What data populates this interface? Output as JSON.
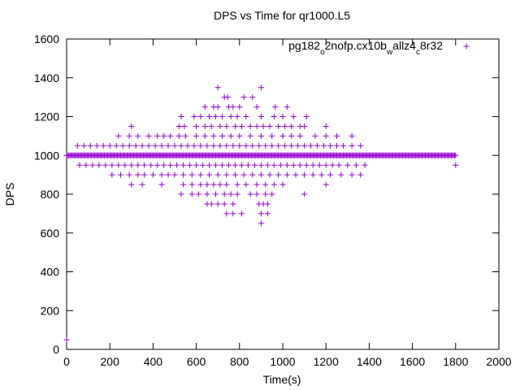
{
  "chart_data": {
    "type": "scatter",
    "title": "DPS vs Time for qr1000.L5",
    "xlabel": "Time(s)",
    "ylabel": "DPS",
    "xlim": [
      0,
      2000
    ],
    "ylim": [
      0,
      1600
    ],
    "xticks": [
      0,
      200,
      400,
      600,
      800,
      1000,
      1200,
      1400,
      1600,
      1800,
      2000
    ],
    "yticks": [
      0,
      200,
      400,
      600,
      800,
      1000,
      1200,
      1400,
      1600
    ],
    "grid": false,
    "legend_position": "top-right",
    "marker": "plus",
    "series": [
      {
        "name": "pg182_o2nofp.cx10b_wallz4_c8r32",
        "name_parts": [
          {
            "text": "pg182",
            "sub": false
          },
          {
            "text": "o",
            "sub": true
          },
          {
            "text": "2nofp.cx10b",
            "sub": false
          },
          {
            "text": "w",
            "sub": true
          },
          {
            "text": "allz4",
            "sub": false
          },
          {
            "text": "c",
            "sub": true
          },
          {
            "text": "8r32",
            "sub": false
          }
        ],
        "color": "#9400d3",
        "baseline": {
          "x_start": 0,
          "x_end": 1800,
          "step": 5,
          "y": 1000
        },
        "points": [
          [
            0,
            50
          ],
          [
            1800,
            950
          ],
          [
            700,
            1350
          ],
          [
            900,
            1350
          ],
          [
            730,
            1300
          ],
          [
            745,
            1300
          ],
          [
            820,
            1300
          ],
          [
            860,
            1300
          ],
          [
            640,
            1250
          ],
          [
            680,
            1250
          ],
          [
            700,
            1250
          ],
          [
            750,
            1250
          ],
          [
            770,
            1250
          ],
          [
            800,
            1250
          ],
          [
            880,
            1250
          ],
          [
            965,
            1250
          ],
          [
            1020,
            1250
          ],
          [
            530,
            1200
          ],
          [
            590,
            1200
          ],
          [
            620,
            1200
          ],
          [
            660,
            1200
          ],
          [
            690,
            1200
          ],
          [
            720,
            1200
          ],
          [
            760,
            1200
          ],
          [
            790,
            1200
          ],
          [
            830,
            1200
          ],
          [
            900,
            1200
          ],
          [
            960,
            1200
          ],
          [
            1000,
            1200
          ],
          [
            1050,
            1200
          ],
          [
            1110,
            1200
          ],
          [
            300,
            1150
          ],
          [
            520,
            1150
          ],
          [
            545,
            1150
          ],
          [
            600,
            1150
          ],
          [
            640,
            1150
          ],
          [
            670,
            1150
          ],
          [
            710,
            1150
          ],
          [
            740,
            1150
          ],
          [
            780,
            1150
          ],
          [
            810,
            1150
          ],
          [
            850,
            1150
          ],
          [
            880,
            1150
          ],
          [
            910,
            1150
          ],
          [
            940,
            1150
          ],
          [
            980,
            1150
          ],
          [
            1010,
            1150
          ],
          [
            1040,
            1150
          ],
          [
            1080,
            1150
          ],
          [
            1100,
            1150
          ],
          [
            1200,
            1150
          ],
          [
            240,
            1100
          ],
          [
            290,
            1100
          ],
          [
            330,
            1100
          ],
          [
            380,
            1100
          ],
          [
            420,
            1100
          ],
          [
            450,
            1100
          ],
          [
            480,
            1100
          ],
          [
            520,
            1100
          ],
          [
            550,
            1100
          ],
          [
            600,
            1100
          ],
          [
            640,
            1100
          ],
          [
            680,
            1100
          ],
          [
            720,
            1100
          ],
          [
            760,
            1100
          ],
          [
            800,
            1100
          ],
          [
            850,
            1100
          ],
          [
            900,
            1100
          ],
          [
            950,
            1100
          ],
          [
            1000,
            1100
          ],
          [
            1040,
            1100
          ],
          [
            1080,
            1100
          ],
          [
            1150,
            1100
          ],
          [
            1200,
            1100
          ],
          [
            1250,
            1100
          ],
          [
            1320,
            1100
          ],
          [
            50,
            1050
          ],
          [
            80,
            1050
          ],
          [
            110,
            1050
          ],
          [
            140,
            1050
          ],
          [
            170,
            1050
          ],
          [
            200,
            1050
          ],
          [
            230,
            1050
          ],
          [
            260,
            1050
          ],
          [
            290,
            1050
          ],
          [
            320,
            1050
          ],
          [
            350,
            1050
          ],
          [
            380,
            1050
          ],
          [
            410,
            1050
          ],
          [
            440,
            1050
          ],
          [
            470,
            1050
          ],
          [
            500,
            1050
          ],
          [
            530,
            1050
          ],
          [
            560,
            1050
          ],
          [
            590,
            1050
          ],
          [
            620,
            1050
          ],
          [
            650,
            1050
          ],
          [
            680,
            1050
          ],
          [
            710,
            1050
          ],
          [
            740,
            1050
          ],
          [
            770,
            1050
          ],
          [
            800,
            1050
          ],
          [
            830,
            1050
          ],
          [
            860,
            1050
          ],
          [
            890,
            1050
          ],
          [
            920,
            1050
          ],
          [
            950,
            1050
          ],
          [
            980,
            1050
          ],
          [
            1010,
            1050
          ],
          [
            1040,
            1050
          ],
          [
            1070,
            1050
          ],
          [
            1100,
            1050
          ],
          [
            1130,
            1050
          ],
          [
            1160,
            1050
          ],
          [
            1190,
            1050
          ],
          [
            1220,
            1050
          ],
          [
            1250,
            1050
          ],
          [
            1280,
            1050
          ],
          [
            1320,
            1050
          ],
          [
            1360,
            1050
          ],
          [
            60,
            950
          ],
          [
            90,
            950
          ],
          [
            120,
            950
          ],
          [
            150,
            950
          ],
          [
            180,
            950
          ],
          [
            210,
            950
          ],
          [
            240,
            950
          ],
          [
            270,
            950
          ],
          [
            300,
            950
          ],
          [
            330,
            950
          ],
          [
            360,
            950
          ],
          [
            390,
            950
          ],
          [
            420,
            950
          ],
          [
            450,
            950
          ],
          [
            480,
            950
          ],
          [
            510,
            950
          ],
          [
            540,
            950
          ],
          [
            570,
            950
          ],
          [
            600,
            950
          ],
          [
            630,
            950
          ],
          [
            660,
            950
          ],
          [
            690,
            950
          ],
          [
            720,
            950
          ],
          [
            750,
            950
          ],
          [
            780,
            950
          ],
          [
            810,
            950
          ],
          [
            840,
            950
          ],
          [
            870,
            950
          ],
          [
            900,
            950
          ],
          [
            930,
            950
          ],
          [
            960,
            950
          ],
          [
            990,
            950
          ],
          [
            1020,
            950
          ],
          [
            1050,
            950
          ],
          [
            1080,
            950
          ],
          [
            1110,
            950
          ],
          [
            1140,
            950
          ],
          [
            1170,
            950
          ],
          [
            1200,
            950
          ],
          [
            1230,
            950
          ],
          [
            1260,
            950
          ],
          [
            1300,
            950
          ],
          [
            1340,
            950
          ],
          [
            1380,
            950
          ],
          [
            210,
            900
          ],
          [
            250,
            900
          ],
          [
            290,
            900
          ],
          [
            330,
            900
          ],
          [
            360,
            900
          ],
          [
            400,
            900
          ],
          [
            440,
            900
          ],
          [
            470,
            900
          ],
          [
            500,
            900
          ],
          [
            540,
            900
          ],
          [
            580,
            900
          ],
          [
            620,
            900
          ],
          [
            660,
            900
          ],
          [
            700,
            900
          ],
          [
            740,
            900
          ],
          [
            780,
            900
          ],
          [
            820,
            900
          ],
          [
            860,
            900
          ],
          [
            900,
            900
          ],
          [
            940,
            900
          ],
          [
            980,
            900
          ],
          [
            1020,
            900
          ],
          [
            1060,
            900
          ],
          [
            1100,
            900
          ],
          [
            1140,
            900
          ],
          [
            1180,
            900
          ],
          [
            1220,
            900
          ],
          [
            1270,
            900
          ],
          [
            1320,
            900
          ],
          [
            1360,
            900
          ],
          [
            300,
            850
          ],
          [
            350,
            850
          ],
          [
            440,
            850
          ],
          [
            540,
            850
          ],
          [
            580,
            850
          ],
          [
            620,
            850
          ],
          [
            650,
            850
          ],
          [
            680,
            850
          ],
          [
            710,
            850
          ],
          [
            740,
            850
          ],
          [
            790,
            850
          ],
          [
            830,
            850
          ],
          [
            880,
            850
          ],
          [
            920,
            850
          ],
          [
            960,
            850
          ],
          [
            1000,
            850
          ],
          [
            1200,
            850
          ],
          [
            530,
            800
          ],
          [
            580,
            800
          ],
          [
            610,
            800
          ],
          [
            650,
            800
          ],
          [
            690,
            800
          ],
          [
            730,
            800
          ],
          [
            760,
            800
          ],
          [
            790,
            800
          ],
          [
            850,
            800
          ],
          [
            880,
            800
          ],
          [
            920,
            800
          ],
          [
            950,
            800
          ],
          [
            1100,
            800
          ],
          [
            650,
            750
          ],
          [
            670,
            750
          ],
          [
            700,
            750
          ],
          [
            730,
            750
          ],
          [
            770,
            750
          ],
          [
            890,
            750
          ],
          [
            910,
            750
          ],
          [
            930,
            750
          ],
          [
            740,
            700
          ],
          [
            770,
            700
          ],
          [
            810,
            700
          ],
          [
            900,
            700
          ],
          [
            930,
            700
          ],
          [
            900,
            650
          ]
        ]
      }
    ]
  }
}
